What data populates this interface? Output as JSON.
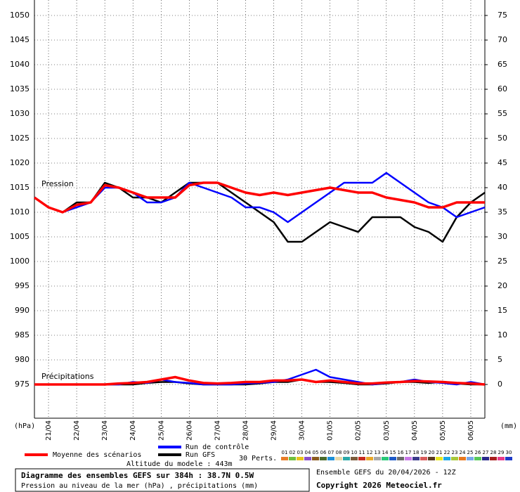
{
  "chart_data": {
    "type": "line",
    "pressure_label": "Pression",
    "precip_label": "Précipitations",
    "y_unit": "(hPa)",
    "y2_unit": "(mm)",
    "xlim": [
      0,
      384
    ],
    "xticks": [
      {
        "value": 12,
        "label": "21/04"
      },
      {
        "value": 36,
        "label": "22/04"
      },
      {
        "value": 60,
        "label": "23/04"
      },
      {
        "value": 84,
        "label": "24/04"
      },
      {
        "value": 108,
        "label": "25/04"
      },
      {
        "value": 132,
        "label": "26/04"
      },
      {
        "value": 156,
        "label": "27/04"
      },
      {
        "value": 180,
        "label": "28/04"
      },
      {
        "value": 204,
        "label": "29/04"
      },
      {
        "value": 228,
        "label": "30/04"
      },
      {
        "value": 252,
        "label": "01/05"
      },
      {
        "value": 276,
        "label": "02/05"
      },
      {
        "value": 300,
        "label": "03/05"
      },
      {
        "value": 324,
        "label": "04/05"
      },
      {
        "value": 348,
        "label": "05/05"
      },
      {
        "value": 372,
        "label": "06/05"
      }
    ],
    "ylim": [
      975,
      1050
    ],
    "yticks": [
      975,
      980,
      985,
      990,
      995,
      1000,
      1005,
      1010,
      1015,
      1020,
      1025,
      1030,
      1035,
      1040,
      1045,
      1050
    ],
    "y2lim": [
      0,
      75
    ],
    "y2ticks": [
      0,
      5,
      10,
      15,
      20,
      25,
      30,
      35,
      40,
      45,
      50,
      55,
      60,
      65,
      70,
      75
    ],
    "grid": true,
    "x": [
      0,
      12,
      24,
      36,
      48,
      60,
      72,
      84,
      96,
      108,
      120,
      132,
      144,
      156,
      168,
      180,
      192,
      204,
      216,
      228,
      240,
      252,
      264,
      276,
      288,
      300,
      312,
      324,
      336,
      348,
      360,
      372,
      384
    ],
    "series": [
      {
        "name": "Moyenne des scénarios",
        "color": "#ff0000",
        "values": [
          1013,
          1011,
          1010,
          1011.5,
          1012,
          1015.5,
          1015,
          1014,
          1013,
          1013,
          1013,
          1015.5,
          1016,
          1016,
          1015,
          1014,
          1013.5,
          1014,
          1013.5,
          1014,
          1014.5,
          1015,
          1014.5,
          1014,
          1014,
          1013,
          1012.5,
          1012,
          1011,
          1011,
          1012,
          1012,
          1012
        ],
        "precip_values": [
          0,
          0,
          0,
          0,
          0,
          0,
          0.2,
          0.3,
          0.5,
          1,
          1.5,
          0.8,
          0.3,
          0.2,
          0.3,
          0.5,
          0.5,
          0.8,
          0.8,
          1,
          0.5,
          0.8,
          0.5,
          0.2,
          0.2,
          0.4,
          0.5,
          0.7,
          0.6,
          0.5,
          0.3,
          0.2,
          0
        ]
      },
      {
        "name": "Run de contrôle",
        "color": "#0000ff",
        "values": [
          1013,
          1011,
          1010,
          1011,
          1012,
          1015,
          1015,
          1014,
          1012,
          1012,
          1013,
          1016,
          1015,
          1014,
          1013,
          1011,
          1011,
          1010,
          1008,
          1010,
          1012,
          1014,
          1016,
          1016,
          1016,
          1018,
          1016,
          1014,
          1012,
          1011,
          1009,
          1010,
          1011
        ],
        "precip_values": [
          0,
          0,
          0,
          0,
          0,
          0,
          0,
          0.5,
          0.3,
          1,
          0.5,
          0.3,
          0,
          0,
          0,
          0.2,
          0.3,
          0.5,
          1,
          2,
          3,
          1.5,
          1,
          0.5,
          0,
          0.3,
          0.5,
          1,
          0.5,
          0.3,
          0,
          0.5,
          0
        ]
      },
      {
        "name": "Run GFS",
        "color": "#000000",
        "values": [
          1013,
          1011,
          1010,
          1012,
          1012,
          1016,
          1015,
          1013,
          1013,
          1012,
          1014,
          1016,
          1016,
          1016,
          1014,
          1012,
          1010,
          1008,
          1004,
          1004,
          1006,
          1008,
          1007,
          1006,
          1009,
          1009,
          1009,
          1007,
          1006,
          1004,
          1009,
          1012,
          1014
        ],
        "precip_values": [
          0,
          0,
          0,
          0,
          0,
          0,
          0,
          0,
          0.3,
          0.5,
          0.5,
          0.2,
          0,
          0,
          0,
          0,
          0.2,
          0.5,
          0.5,
          1,
          0.5,
          0.5,
          0.3,
          0,
          0,
          0.2,
          0.5,
          0.5,
          0.3,
          0.5,
          0.2,
          0,
          0
        ]
      }
    ],
    "perturbations_label": "30 Perts.",
    "perturbations": [
      {
        "name": "01",
        "color": "#e87d28"
      },
      {
        "name": "02",
        "color": "#6fbf3a"
      },
      {
        "name": "03",
        "color": "#e8c21a"
      },
      {
        "name": "04",
        "color": "#8a4fc8"
      },
      {
        "name": "05",
        "color": "#8a5a1e"
      },
      {
        "name": "06",
        "color": "#4a6a2a"
      },
      {
        "name": "07",
        "color": "#1e8fd8"
      },
      {
        "name": "08",
        "color": "#e8d8a8"
      },
      {
        "name": "09",
        "color": "#2aa8a8"
      },
      {
        "name": "10",
        "color": "#7a5a3a"
      },
      {
        "name": "11",
        "color": "#c8281e"
      },
      {
        "name": "12",
        "color": "#e8a82a"
      },
      {
        "name": "13",
        "color": "#a8a8a8"
      },
      {
        "name": "14",
        "color": "#28c878"
      },
      {
        "name": "15",
        "color": "#1e5ac8"
      },
      {
        "name": "16",
        "color": "#6a6a6a"
      },
      {
        "name": "17",
        "color": "#c878e8"
      },
      {
        "name": "18",
        "color": "#3a3a8a"
      },
      {
        "name": "19",
        "color": "#d85a5a"
      },
      {
        "name": "20",
        "color": "#5a3a1e"
      },
      {
        "name": "21",
        "color": "#e8e81e"
      },
      {
        "name": "22",
        "color": "#1ea8e8"
      },
      {
        "name": "23",
        "color": "#a8c83a"
      },
      {
        "name": "24",
        "color": "#e8781e"
      },
      {
        "name": "25",
        "color": "#78a8e8"
      },
      {
        "name": "26",
        "color": "#58c858"
      },
      {
        "name": "27",
        "color": "#28288a"
      },
      {
        "name": "28",
        "color": "#a81e1e"
      },
      {
        "name": "29",
        "color": "#e83a8a"
      },
      {
        "name": "30",
        "color": "#1e3ac8"
      }
    ],
    "altitude": "Altitude du modele : 443m",
    "box_title": "Diagramme des ensembles GEFS sur 384h : 38.7N 0.5W",
    "box_subtitle": "Pression au niveau de la mer (hPa) , précipitations (mm)",
    "run_info": "Ensemble GEFS du 20/04/2026 - 12Z",
    "copyright": "Copyright 2026 Meteociel.fr"
  }
}
